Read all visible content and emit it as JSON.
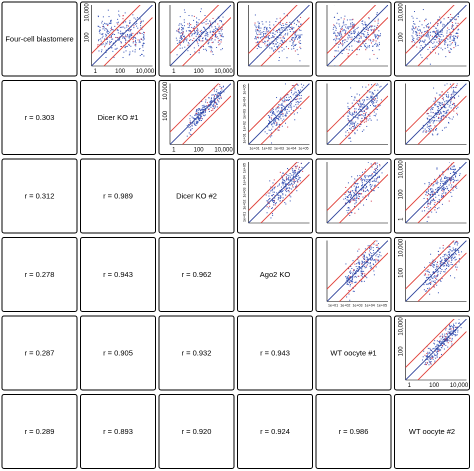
{
  "chart_data": {
    "type": "scatter",
    "title": "",
    "samples": [
      "Four-cell blastomere",
      "Dicer KO #1",
      "Dicer KO #2",
      "Ago2 KO",
      "WT oocyte #1",
      "WT oocyte #2"
    ],
    "correlations": [
      {
        "row": 1,
        "col": 0,
        "label": "r = 0.303",
        "value": 0.303
      },
      {
        "row": 2,
        "col": 0,
        "label": "r = 0.312",
        "value": 0.312
      },
      {
        "row": 2,
        "col": 1,
        "label": "r = 0.989",
        "value": 0.989
      },
      {
        "row": 3,
        "col": 0,
        "label": "r = 0.278",
        "value": 0.278
      },
      {
        "row": 3,
        "col": 1,
        "label": "r = 0.943",
        "value": 0.943
      },
      {
        "row": 3,
        "col": 2,
        "label": "r = 0.962",
        "value": 0.962
      },
      {
        "row": 4,
        "col": 0,
        "label": "r = 0.287",
        "value": 0.287
      },
      {
        "row": 4,
        "col": 1,
        "label": "r = 0.905",
        "value": 0.905
      },
      {
        "row": 4,
        "col": 2,
        "label": "r = 0.932",
        "value": 0.932
      },
      {
        "row": 4,
        "col": 3,
        "label": "r = 0.943",
        "value": 0.943
      },
      {
        "row": 5,
        "col": 0,
        "label": "r = 0.289",
        "value": 0.289
      },
      {
        "row": 5,
        "col": 1,
        "label": "r = 0.893",
        "value": 0.893
      },
      {
        "row": 5,
        "col": 2,
        "label": "r = 0.920",
        "value": 0.92
      },
      {
        "row": 5,
        "col": 3,
        "label": "r = 0.924",
        "value": 0.924
      },
      {
        "row": 5,
        "col": 4,
        "label": "r = 0.986",
        "value": 0.986
      }
    ],
    "axes": {
      "scale": "log",
      "xlim": [
        0.5,
        40000
      ],
      "ylim": [
        0.5,
        40000
      ],
      "ticks": [
        1,
        100,
        10000
      ],
      "tick_labels": [
        "1",
        "100",
        "10,000"
      ],
      "alt_tick_labels": [
        "1e+01",
        "1e+02",
        "1e+03",
        "1e+04",
        "1e+05"
      ]
    },
    "scatter_panels": [
      {
        "row": 0,
        "col": 1,
        "r": 0.303,
        "x_tick_labels": [
          "1",
          "100",
          "10,000"
        ],
        "y_tick_labels": [
          "100",
          "10,000"
        ]
      },
      {
        "row": 0,
        "col": 2,
        "r": 0.312,
        "x_tick_labels": [
          "1",
          "100",
          "10,000"
        ],
        "y_tick_labels": []
      },
      {
        "row": 0,
        "col": 3,
        "r": 0.278,
        "x_tick_labels": [],
        "y_tick_labels": []
      },
      {
        "row": 0,
        "col": 4,
        "r": 0.287,
        "x_tick_labels": [],
        "y_tick_labels": []
      },
      {
        "row": 0,
        "col": 5,
        "r": 0.289,
        "x_tick_labels": [],
        "y_tick_labels": [
          "100",
          "10,000"
        ]
      },
      {
        "row": 1,
        "col": 2,
        "r": 0.989,
        "x_tick_labels": [
          "1",
          "100",
          "10,000"
        ],
        "y_tick_labels": [
          "100",
          "10,000"
        ]
      },
      {
        "row": 1,
        "col": 3,
        "r": 0.943,
        "x_tick_labels": [
          "1e+01",
          "1e+02",
          "1e+03",
          "1e+04",
          "1e+05"
        ],
        "y_tick_labels": [
          "1e+01",
          "1e+02",
          "1e+03",
          "1e+04",
          "1e+05"
        ]
      },
      {
        "row": 1,
        "col": 4,
        "r": 0.905,
        "x_tick_labels": [],
        "y_tick_labels": []
      },
      {
        "row": 1,
        "col": 5,
        "r": 0.893,
        "x_tick_labels": [],
        "y_tick_labels": []
      },
      {
        "row": 2,
        "col": 3,
        "r": 0.962,
        "x_tick_labels": [],
        "y_tick_labels": [
          "1e+01",
          "1e+02",
          "1e+03",
          "1e+04",
          "1e+05"
        ]
      },
      {
        "row": 2,
        "col": 4,
        "r": 0.932,
        "x_tick_labels": [],
        "y_tick_labels": []
      },
      {
        "row": 2,
        "col": 5,
        "r": 0.92,
        "x_tick_labels": [],
        "y_tick_labels": [
          "10,000",
          "100",
          "1"
        ]
      },
      {
        "row": 3,
        "col": 4,
        "r": 0.943,
        "x_tick_labels": [
          "1e+01",
          "1e+02",
          "1e+03",
          "1e+04",
          "1e+05"
        ],
        "y_tick_labels": []
      },
      {
        "row": 3,
        "col": 5,
        "r": 0.924,
        "x_tick_labels": [],
        "y_tick_labels": [
          "100",
          "10,000"
        ]
      },
      {
        "row": 4,
        "col": 5,
        "r": 0.986,
        "x_tick_labels": [
          "1",
          "100",
          "10,000"
        ],
        "y_tick_labels": [
          "100",
          "10,000"
        ]
      }
    ],
    "reference_lines": [
      {
        "kind": "identity",
        "color": "#2a3f9a"
      },
      {
        "kind": "fold-change",
        "fold": 10,
        "color": "#e0413a"
      },
      {
        "kind": "fold-change",
        "fold": 0.1,
        "color": "#e0413a"
      }
    ],
    "point_colors": {
      "primary": "#3a56b8",
      "secondary": "#d0344a"
    },
    "grid": false,
    "legend": "none"
  }
}
